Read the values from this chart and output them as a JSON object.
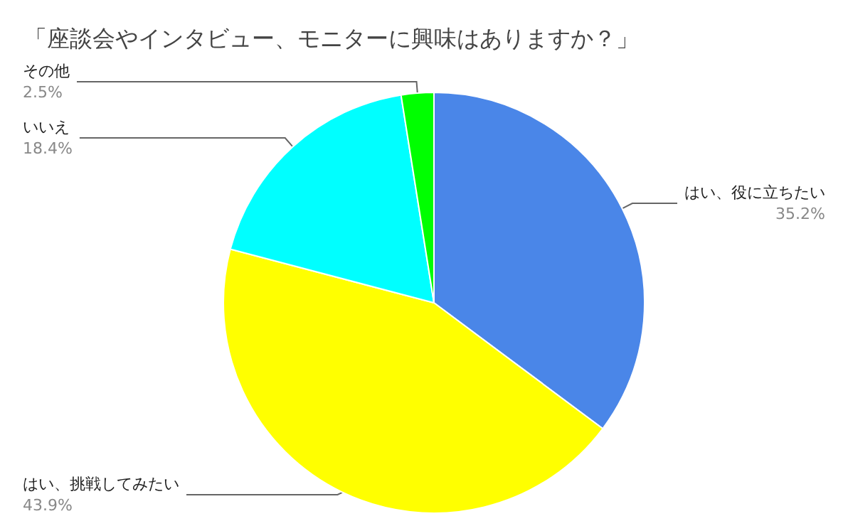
{
  "chart_data": {
    "type": "pie",
    "title": "「座談会やインタビュー、モニターに興味はありますか？」",
    "categories": [
      "はい、役に立ちたい",
      "はい、挑戦してみたい",
      "いいえ",
      "その他"
    ],
    "values": [
      35.2,
      43.9,
      18.4,
      2.5
    ],
    "colors": [
      "#4a86e8",
      "#ffff00",
      "#00ffff",
      "#00ff00"
    ],
    "value_labels": [
      "35.2%",
      "43.9%",
      "18.4%",
      "2.5%"
    ],
    "legend": false
  }
}
